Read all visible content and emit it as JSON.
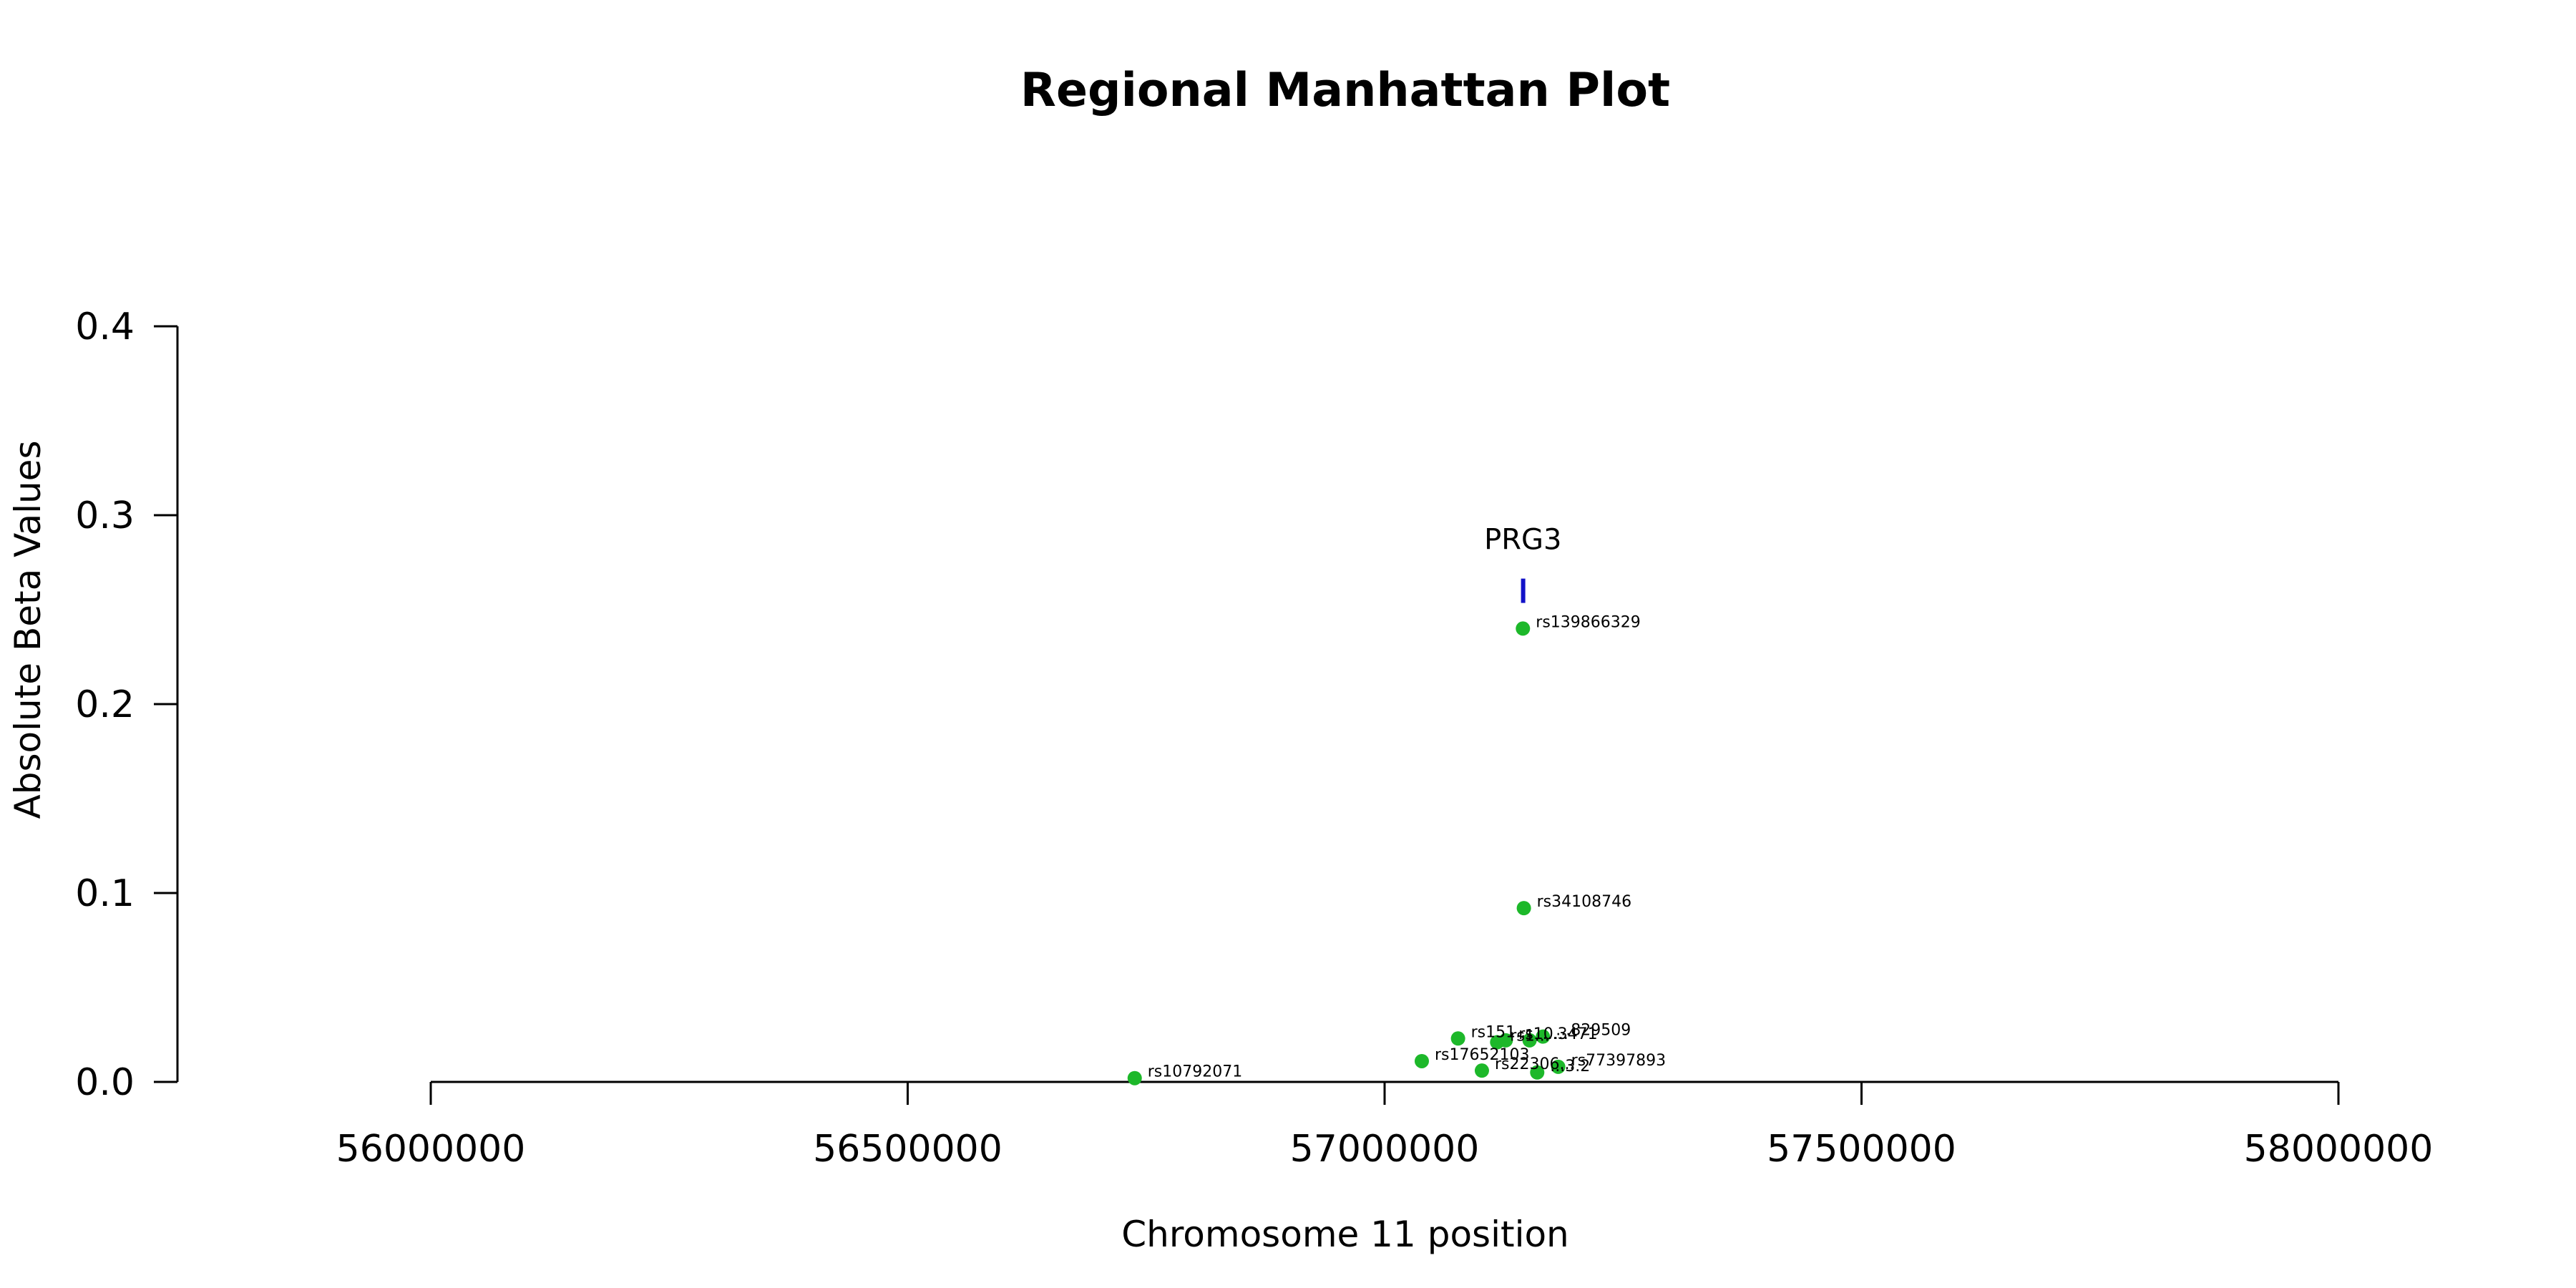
{
  "chart_data": {
    "type": "scatter",
    "title": "Regional Manhattan Plot",
    "xlabel": "Chromosome 11 position",
    "ylabel": "Absolute Beta Values",
    "xlim": [
      56000000,
      58000000
    ],
    "ylim": [
      0,
      0.4
    ],
    "xticks": [
      56000000,
      56500000,
      57000000,
      57500000,
      58000000
    ],
    "xtick_labels": [
      "56000000",
      "56500000",
      "57000000",
      "57500000",
      "58000000"
    ],
    "yticks": [
      0,
      0.1,
      0.2,
      0.3,
      0.4
    ],
    "ytick_labels": [
      "0.0",
      "0.1",
      "0.2",
      "0.3",
      "0.4"
    ],
    "grid": false,
    "point_color": "#1DB82A",
    "gene_color": "#1212C8",
    "points": [
      {
        "label": "rs10792071",
        "x": 56738000,
        "y": 0.002
      },
      {
        "label": "rs17652103",
        "x": 57039000,
        "y": 0.011
      },
      {
        "label": "rs151...",
        "x": 57077000,
        "y": 0.023
      },
      {
        "label": "rs22306...",
        "x": 57102000,
        "y": 0.006
      },
      {
        "label": "rs1...",
        "x": 57118000,
        "y": 0.021
      },
      {
        "label": "rs10...",
        "x": 57127000,
        "y": 0.022
      },
      {
        "label": "rs139866329",
        "x": 57145000,
        "y": 0.24
      },
      {
        "label": "rs34108746",
        "x": 57146000,
        "y": 0.092
      },
      {
        "label": "...3471",
        "x": 57152000,
        "y": 0.022
      },
      {
        "label": "...3.2",
        "x": 57160000,
        "y": 0.005
      },
      {
        "label": "...829509",
        "x": 57166000,
        "y": 0.024
      },
      {
        "label": "rs77397893",
        "x": 57182000,
        "y": 0.008
      }
    ],
    "genes": [
      {
        "name": "PRG3",
        "x_start": 57143000,
        "x_end": 57147000,
        "y": 0.26
      }
    ]
  }
}
